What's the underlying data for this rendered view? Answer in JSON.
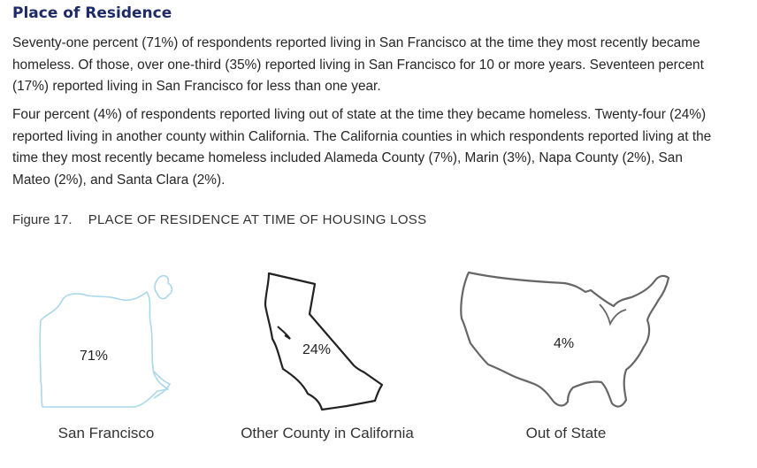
{
  "section": {
    "title": "Place of Residence",
    "paragraph1": "Seventy-one percent (71%) of respondents reported living in San Francisco at the time they most recently became homeless. Of those, over one-third (35%) reported living in San Francisco for 10 or more years. Seventeen percent (17%) reported living in San Francisco for less than one year.",
    "paragraph2": "Four percent (4%) of respondents reported living out of state at the time they became homeless. Twenty-four (24%) reported living in another county within California. The California counties in which respondents reported living at the time they most recently became homeless included Alameda County (7%), Marin (3%), Napa County (2%), San Mateo (2%), and Santa Clara (2%)."
  },
  "figure": {
    "number": "Figure 17.",
    "title": "PLACE OF RESIDENCE AT TIME OF HOUSING LOSS",
    "items": [
      {
        "label": "San Francisco",
        "value": "71%",
        "icon": "san-francisco-map-icon",
        "color": "#a9d8ec"
      },
      {
        "label": "Other County in California",
        "value": "24%",
        "icon": "california-map-icon",
        "color": "#222222"
      },
      {
        "label": "Out of State",
        "value": "4%",
        "icon": "usa-map-icon",
        "color": "#666666"
      }
    ]
  }
}
